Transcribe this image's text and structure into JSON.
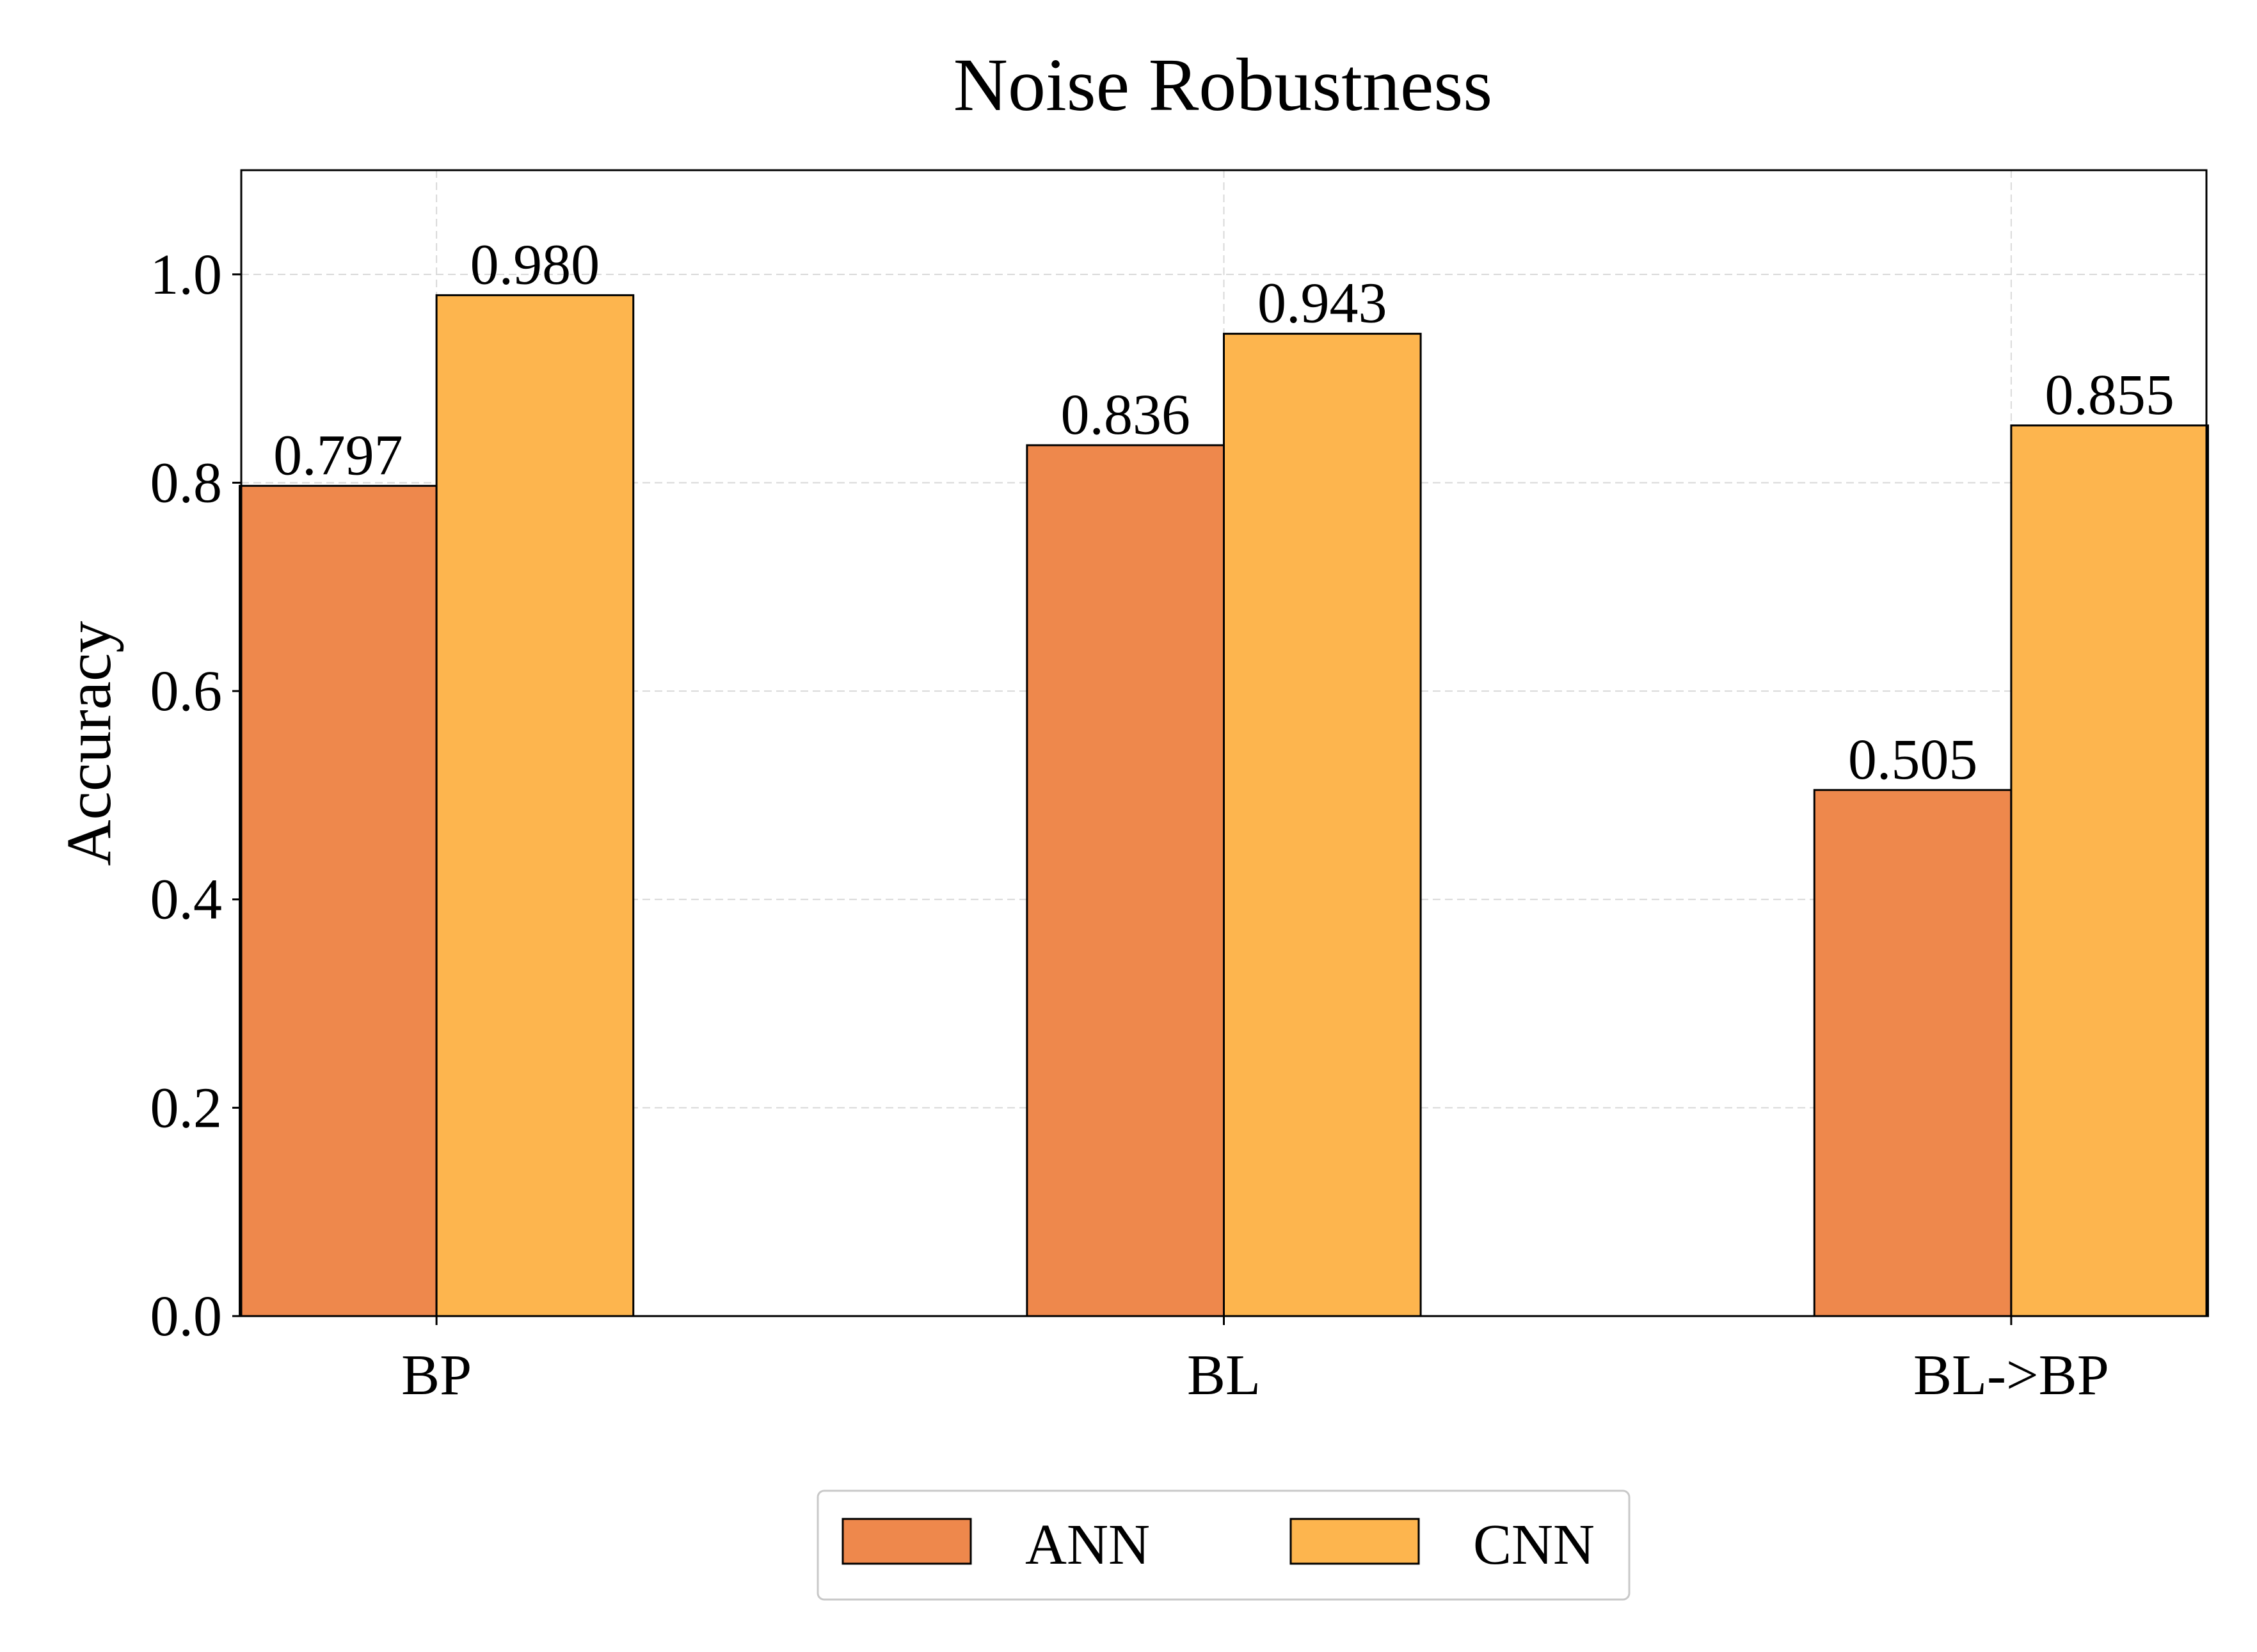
{
  "chart_data": {
    "type": "bar",
    "title": "Noise Robustness",
    "xlabel": "",
    "ylabel": "Accuracy",
    "categories": [
      "BP",
      "BL",
      "BL->BP"
    ],
    "series": [
      {
        "name": "ANN",
        "values": [
          0.797,
          0.836,
          0.505
        ],
        "labels": [
          "0.797",
          "0.836",
          "0.505"
        ],
        "color": "#EE884C"
      },
      {
        "name": "CNN",
        "values": [
          0.98,
          0.943,
          0.855
        ],
        "labels": [
          "0.980",
          "0.943",
          "0.855"
        ],
        "color": "#FDB54E"
      }
    ],
    "ylim": [
      0,
      1.1
    ],
    "yticks": [
      0.0,
      0.2,
      0.4,
      0.6,
      0.8,
      1.0
    ],
    "ytick_labels": [
      "0.0",
      "0.2",
      "0.4",
      "0.6",
      "0.8",
      "1.0"
    ],
    "grid": true,
    "legend_position": "bottom-center"
  }
}
